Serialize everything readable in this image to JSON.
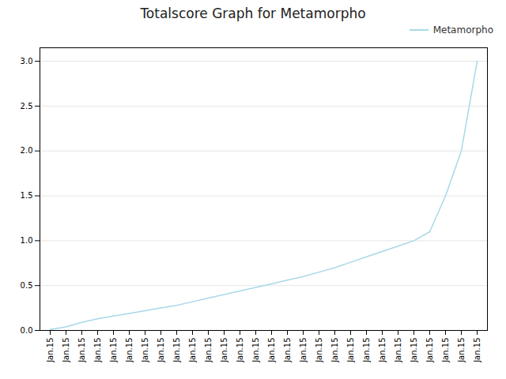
{
  "chart_data": {
    "type": "line",
    "title": "Totalscore Graph for Metamorpho",
    "categories": [
      "Jan.15",
      "Jan.15",
      "Jan.15",
      "Jan.15",
      "Jan.15",
      "Jan.15",
      "Jan.15",
      "Jan.15",
      "Jan.15",
      "Jan.15",
      "Jan.15",
      "Jan.15",
      "Jan.15",
      "Jan.15",
      "Jan.15",
      "Jan.15",
      "Jan.15",
      "Jan.15",
      "Jan.15",
      "Jan.15",
      "Jan.15",
      "Jan.15",
      "Jan.15",
      "Jan.15",
      "Jan.15",
      "Jan.15",
      "Jan.15",
      "Jan.15"
    ],
    "series": [
      {
        "name": "Metamorpho",
        "color": "#a8d8ea",
        "values": [
          0.01,
          0.04,
          0.09,
          0.13,
          0.16,
          0.19,
          0.22,
          0.25,
          0.28,
          0.32,
          0.36,
          0.4,
          0.44,
          0.48,
          0.52,
          0.56,
          0.6,
          0.65,
          0.7,
          0.76,
          0.82,
          0.88,
          0.94,
          1.0,
          1.1,
          1.5,
          2.0,
          3.0
        ]
      }
    ],
    "ylim": [
      0.0,
      3.15
    ],
    "yticks": [
      {
        "value": 0.0,
        "label": "0.0"
      },
      0.5,
      {
        "value": 1.0,
        "label": "1.0"
      },
      1.5,
      {
        "value": 2.0,
        "label": "2.0"
      },
      2.5,
      {
        "value": 3.0,
        "label": "3.0"
      }
    ],
    "grid": true,
    "legend": "upper right"
  }
}
